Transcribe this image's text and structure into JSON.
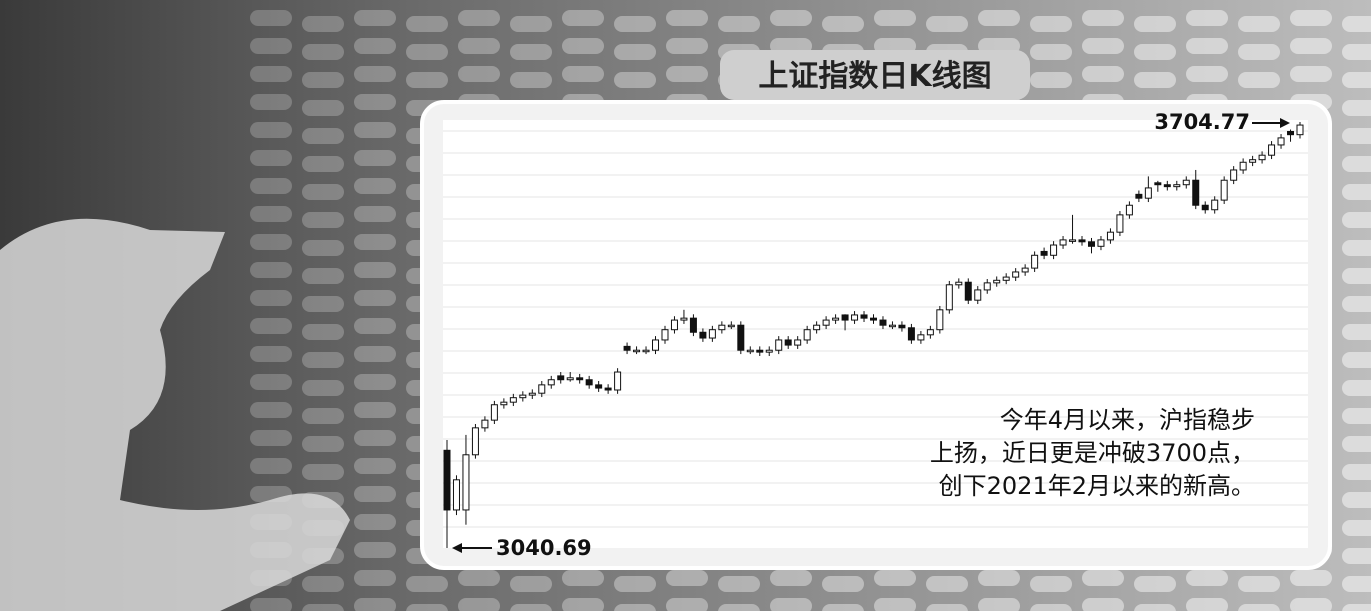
{
  "chart_data": {
    "type": "candlestick",
    "title": "上证指数日K线图",
    "low_label": 3040.69,
    "high_label": 3704.77,
    "note_lines": [
      "今年4月以来，沪指稳步",
      "上扬，近日更是冲破3700点，",
      "创下2021年2月以来的新高。"
    ],
    "up_color": "#ffffff",
    "down_color": "#111111",
    "ohlc": [
      [
        3193,
        3209,
        3040.69,
        3100
      ],
      [
        3100,
        3154,
        3092,
        3147
      ],
      [
        3100,
        3217,
        3077,
        3186
      ],
      [
        3186,
        3234,
        3180,
        3228
      ],
      [
        3228,
        3246,
        3222,
        3240
      ],
      [
        3240,
        3270,
        3234,
        3264
      ],
      [
        3264,
        3274,
        3258,
        3268
      ],
      [
        3268,
        3281,
        3262,
        3275
      ],
      [
        3275,
        3285,
        3269,
        3279
      ],
      [
        3279,
        3288,
        3273,
        3282
      ],
      [
        3282,
        3301,
        3276,
        3295
      ],
      [
        3295,
        3309,
        3289,
        3303
      ],
      [
        3309,
        3315,
        3297,
        3303
      ],
      [
        3303,
        3315,
        3300,
        3306
      ],
      [
        3306,
        3312,
        3297,
        3303
      ],
      [
        3303,
        3309,
        3289,
        3295
      ],
      [
        3295,
        3301,
        3284,
        3290
      ],
      [
        3290,
        3296,
        3281,
        3287
      ],
      [
        3287,
        3321,
        3281,
        3315
      ],
      [
        3355,
        3361,
        3343,
        3349
      ],
      [
        3349,
        3355,
        3343,
        3349
      ],
      [
        3349,
        3355,
        3343,
        3349
      ],
      [
        3349,
        3371,
        3343,
        3365
      ],
      [
        3365,
        3387,
        3359,
        3381
      ],
      [
        3381,
        3402,
        3375,
        3396
      ],
      [
        3396,
        3412,
        3390,
        3399
      ],
      [
        3399,
        3405,
        3371,
        3377
      ],
      [
        3377,
        3383,
        3362,
        3368
      ],
      [
        3368,
        3387,
        3362,
        3381
      ],
      [
        3381,
        3394,
        3375,
        3388
      ],
      [
        3388,
        3394,
        3382,
        3388
      ],
      [
        3388,
        3394,
        3343,
        3349
      ],
      [
        3349,
        3355,
        3343,
        3349
      ],
      [
        3349,
        3355,
        3340,
        3346
      ],
      [
        3346,
        3355,
        3340,
        3349
      ],
      [
        3349,
        3371,
        3343,
        3365
      ],
      [
        3365,
        3371,
        3351,
        3357
      ],
      [
        3357,
        3371,
        3351,
        3365
      ],
      [
        3365,
        3387,
        3359,
        3381
      ],
      [
        3381,
        3394,
        3375,
        3388
      ],
      [
        3388,
        3402,
        3382,
        3396
      ],
      [
        3396,
        3405,
        3390,
        3399
      ],
      [
        3404,
        3405,
        3380,
        3396
      ],
      [
        3396,
        3410,
        3390,
        3404
      ],
      [
        3404,
        3410,
        3393,
        3399
      ],
      [
        3399,
        3405,
        3390,
        3396
      ],
      [
        3396,
        3402,
        3382,
        3388
      ],
      [
        3388,
        3394,
        3382,
        3388
      ],
      [
        3388,
        3394,
        3378,
        3384
      ],
      [
        3384,
        3390,
        3359,
        3365
      ],
      [
        3365,
        3379,
        3359,
        3373
      ],
      [
        3373,
        3387,
        3367,
        3381
      ],
      [
        3381,
        3418,
        3375,
        3412
      ],
      [
        3412,
        3457,
        3406,
        3451
      ],
      [
        3451,
        3461,
        3445,
        3455
      ],
      [
        3455,
        3461,
        3421,
        3427
      ],
      [
        3427,
        3449,
        3421,
        3443
      ],
      [
        3443,
        3460,
        3437,
        3454
      ],
      [
        3454,
        3464,
        3448,
        3458
      ],
      [
        3458,
        3469,
        3452,
        3463
      ],
      [
        3463,
        3477,
        3457,
        3471
      ],
      [
        3471,
        3483,
        3465,
        3477
      ],
      [
        3477,
        3503,
        3471,
        3497
      ],
      [
        3503,
        3509,
        3491,
        3497
      ],
      [
        3497,
        3519,
        3491,
        3513
      ],
      [
        3513,
        3527,
        3507,
        3521
      ],
      [
        3521,
        3560,
        3515,
        3521
      ],
      [
        3521,
        3527,
        3512,
        3518
      ],
      [
        3518,
        3524,
        3500,
        3511
      ],
      [
        3511,
        3527,
        3505,
        3521
      ],
      [
        3521,
        3539,
        3515,
        3533
      ],
      [
        3533,
        3566,
        3527,
        3560
      ],
      [
        3560,
        3581,
        3554,
        3575
      ],
      [
        3592,
        3598,
        3580,
        3586
      ],
      [
        3586,
        3620,
        3580,
        3602
      ],
      [
        3610,
        3613,
        3596,
        3607
      ],
      [
        3607,
        3613,
        3598,
        3604
      ],
      [
        3604,
        3613,
        3598,
        3607
      ],
      [
        3607,
        3620,
        3601,
        3614
      ],
      [
        3614,
        3630,
        3569,
        3575
      ],
      [
        3575,
        3581,
        3562,
        3568
      ],
      [
        3568,
        3589,
        3562,
        3583
      ],
      [
        3583,
        3620,
        3577,
        3614
      ],
      [
        3614,
        3636,
        3608,
        3630
      ],
      [
        3630,
        3648,
        3624,
        3642
      ],
      [
        3642,
        3652,
        3636,
        3646
      ],
      [
        3646,
        3659,
        3640,
        3653
      ],
      [
        3653,
        3675,
        3647,
        3669
      ],
      [
        3669,
        3686,
        3663,
        3680
      ],
      [
        3690,
        3693,
        3674,
        3685
      ],
      [
        3685,
        3704.77,
        3679,
        3700
      ]
    ]
  }
}
